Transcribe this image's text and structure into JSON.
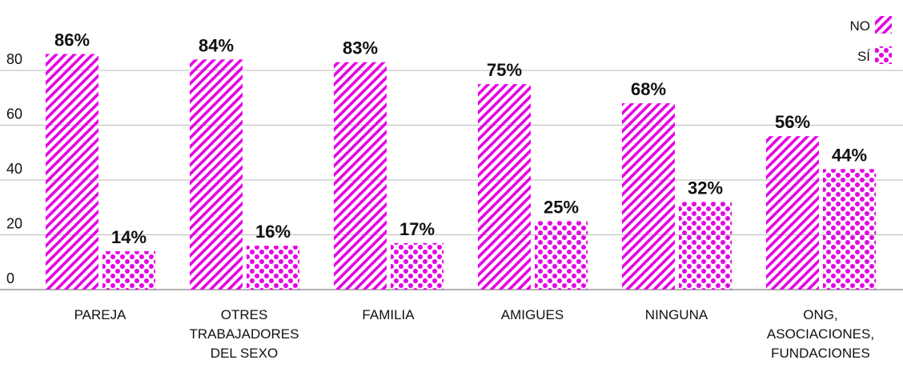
{
  "chart_data": {
    "type": "bar",
    "categories": [
      [
        "PAREJA"
      ],
      [
        "OTRES",
        "TRABAJADORES",
        "DEL SEXO"
      ],
      [
        "FAMILIA"
      ],
      [
        "AMIGUES"
      ],
      [
        "NINGUNA"
      ],
      [
        "ONG,",
        "ASOCIACIONES,",
        "FUNDACIONES"
      ]
    ],
    "series": [
      {
        "name": "NO",
        "color": "#e600e6",
        "pattern": "stripes",
        "values": [
          86,
          84,
          83,
          75,
          68,
          56
        ],
        "value_labels": [
          "86%",
          "84%",
          "83%",
          "75%",
          "68%",
          "56%"
        ]
      },
      {
        "name": "SÍ",
        "color": "#e600e6",
        "pattern": "dots",
        "values": [
          14,
          16,
          17,
          25,
          32,
          44
        ],
        "value_labels": [
          "14%",
          "16%",
          "17%",
          "25%",
          "32%",
          "44%"
        ]
      }
    ],
    "ylim": [
      0,
      100
    ],
    "yticks": [
      0,
      20,
      40,
      60,
      80
    ],
    "grid": true,
    "legend": "top-right"
  }
}
